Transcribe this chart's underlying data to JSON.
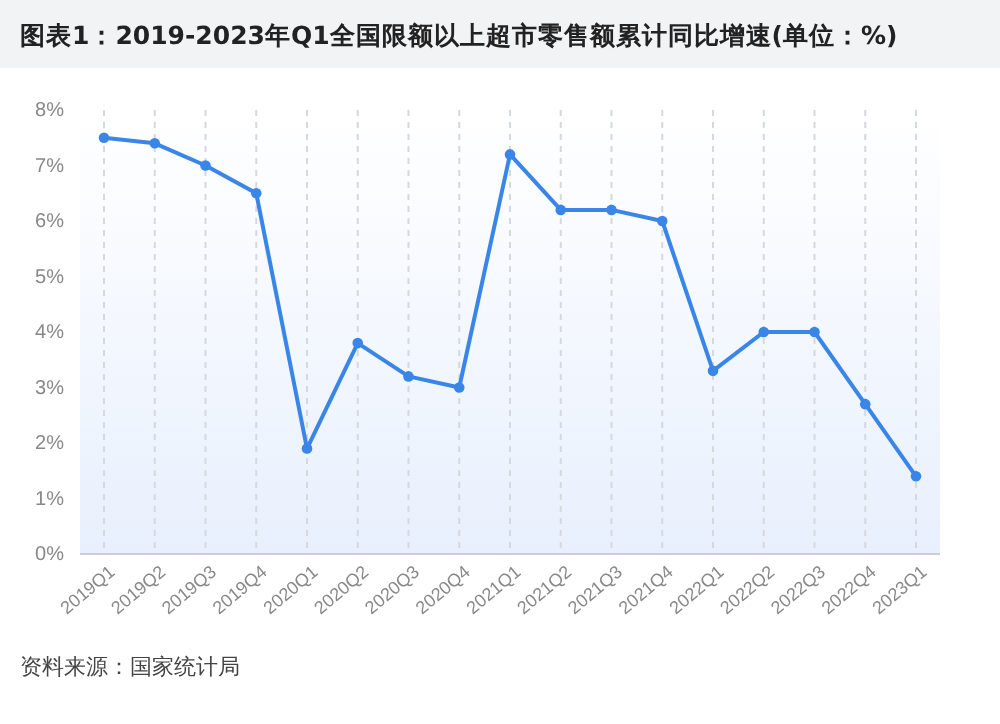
{
  "chart_data": {
    "type": "line",
    "title": "图表1：2019-2023年Q1全国限额以上超市零售额累计同比增速(单位：%)",
    "categories": [
      "2019Q1",
      "2019Q2",
      "2019Q3",
      "2019Q4",
      "2020Q1",
      "2020Q2",
      "2020Q3",
      "2020Q4",
      "2021Q1",
      "2021Q2",
      "2021Q3",
      "2021Q4",
      "2022Q1",
      "2022Q2",
      "2022Q3",
      "2022Q4",
      "2023Q1"
    ],
    "series": [
      {
        "color": "#3a86e8",
        "values": [
          7.5,
          7.4,
          7.0,
          6.5,
          1.9,
          3.8,
          3.2,
          3.0,
          7.2,
          6.2,
          6.2,
          6.0,
          3.3,
          4.0,
          4.0,
          2.7,
          1.4
        ]
      }
    ],
    "ylim": [
      0,
      8
    ],
    "yticks": [
      {
        "value": 0,
        "label": "0%"
      },
      {
        "value": 1,
        "label": "1%"
      },
      {
        "value": 2,
        "label": "2%"
      },
      {
        "value": 3,
        "label": "3%"
      },
      {
        "value": 4,
        "label": "4%"
      },
      {
        "value": 5,
        "label": "5%"
      },
      {
        "value": 6,
        "label": "6%"
      },
      {
        "value": 7,
        "label": "7%"
      },
      {
        "value": 8,
        "label": "8%"
      }
    ],
    "grid": "x",
    "marker": "circle",
    "line_style": "solid",
    "annotations": [
      "资料来源：国家统计局"
    ]
  }
}
